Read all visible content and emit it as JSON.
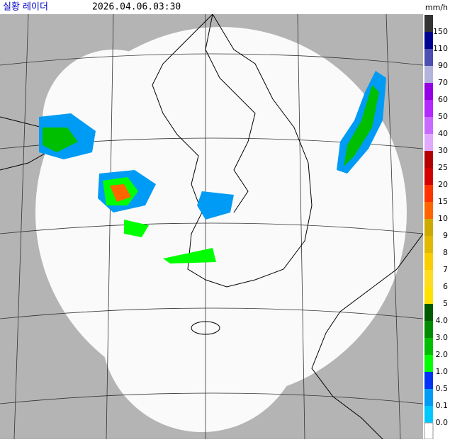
{
  "header": {
    "title": "실황 레이더",
    "time": "2026.04.06.03:30",
    "unit": "mm/h"
  },
  "legend": [
    {
      "label": "150",
      "color": "#333333"
    },
    {
      "label": "110",
      "color": "#000390"
    },
    {
      "label": "90",
      "color": "#4c4eb1"
    },
    {
      "label": "70",
      "color": "#b3b4de"
    },
    {
      "label": "60",
      "color": "#9300e4"
    },
    {
      "label": "50",
      "color": "#b329ff"
    },
    {
      "label": "40",
      "color": "#c969ff"
    },
    {
      "label": "30",
      "color": "#e0a9ff"
    },
    {
      "label": "25",
      "color": "#b40000"
    },
    {
      "label": "20",
      "color": "#d20000"
    },
    {
      "label": "15",
      "color": "#ff3200"
    },
    {
      "label": "10",
      "color": "#ff6600"
    },
    {
      "label": "9",
      "color": "#ccaa00"
    },
    {
      "label": "8",
      "color": "#e0b900"
    },
    {
      "label": "7",
      "color": "#f9cd00"
    },
    {
      "label": "6",
      "color": "#ffdc1f"
    },
    {
      "label": "5",
      "color": "#ffe100"
    },
    {
      "label": "4.0",
      "color": "#005a00"
    },
    {
      "label": "3.0",
      "color": "#008c00"
    },
    {
      "label": "2.0",
      "color": "#00be00"
    },
    {
      "label": "1.0",
      "color": "#00ff00"
    },
    {
      "label": "0.5",
      "color": "#0033f5"
    },
    {
      "label": "0.1",
      "color": "#009bf5"
    },
    {
      "label": "0.0",
      "color": "#00c8ff"
    }
  ]
}
